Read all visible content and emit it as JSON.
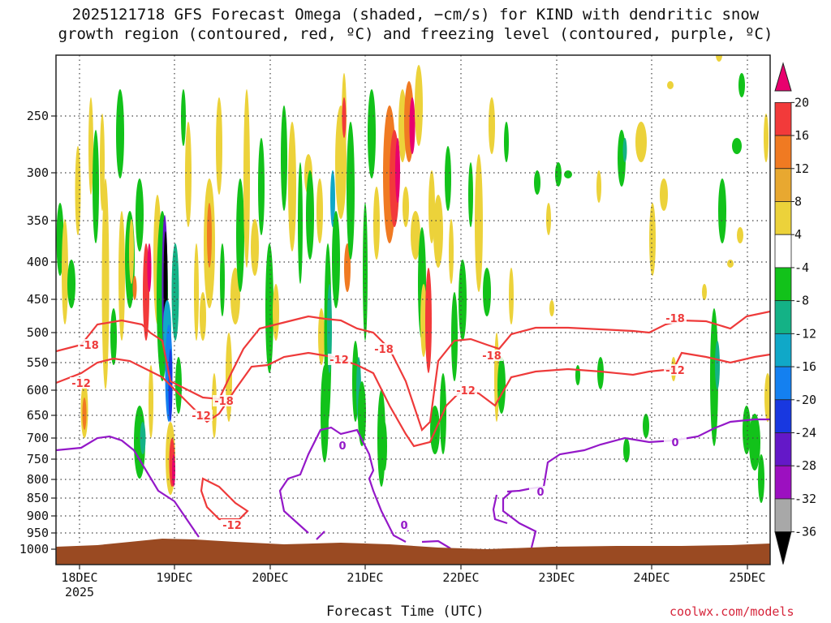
{
  "title_line1": "2025121718 GFS Forecast Omega (shaded, −cm/s) for KIND with dendritic snow",
  "title_line2": "growth region (contoured, red, ºC) and freezing level (contoured, purple, ºC)",
  "xlabel": "Forecast Time (UTC)",
  "credit": "coolwx.com/models",
  "chart_data": {
    "type": "heatmap",
    "title": "2025121718 GFS Forecast Omega (shaded, −cm/s) for KIND with dendritic snow growth region (contoured, red, ºC) and freezing level (contoured, purple, ºC)",
    "xlabel": "Forecast Time (UTC)",
    "ylabel": "",
    "x_ticks": [
      "18DEC",
      "19DEC",
      "20DEC",
      "21DEC",
      "22DEC",
      "23DEC",
      "24DEC",
      "25DEC"
    ],
    "x_tick_sub": "2025",
    "y_ticks": [
      250,
      300,
      350,
      400,
      450,
      500,
      550,
      600,
      650,
      700,
      750,
      800,
      850,
      900,
      950,
      1000
    ],
    "y_scale": "log-pressure",
    "grid": true,
    "colorbar": {
      "labels": [
        20,
        16,
        12,
        8,
        4,
        -4,
        -8,
        -12,
        -16,
        -20,
        -24,
        -28,
        -32,
        -36
      ],
      "colors": [
        "#e8006e",
        "#f23a3a",
        "#f07a22",
        "#e8a830",
        "#ecd23a",
        "#ffffff",
        "#12c21a",
        "#14b286",
        "#10a8c8",
        "#1480f0",
        "#1838e0",
        "#6418c8",
        "#9c10c0",
        "#a8a8a8",
        "#000000"
      ],
      "position": "right"
    },
    "contour_labels": [
      {
        "series": "dendritic",
        "text": "-18"
      },
      {
        "series": "dendritic",
        "text": "-12"
      },
      {
        "series": "dendritic",
        "text": "-18"
      },
      {
        "series": "dendritic",
        "text": "-12"
      },
      {
        "series": "dendritic",
        "text": "-12"
      },
      {
        "series": "dendritic",
        "text": "-18"
      },
      {
        "series": "dendritic",
        "text": "-12"
      },
      {
        "series": "dendritic",
        "text": "-18"
      },
      {
        "series": "dendritic",
        "text": "-12"
      },
      {
        "series": "dendritic",
        "text": "-18"
      },
      {
        "series": "dendritic",
        "text": "-12"
      },
      {
        "series": "freezing",
        "text": "0"
      },
      {
        "series": "freezing",
        "text": "0"
      },
      {
        "series": "freezing",
        "text": "0"
      },
      {
        "series": "freezing",
        "text": "0"
      }
    ],
    "contours": {
      "dendritic_minus18_color": "#ee3a3a",
      "dendritic_minus12_color": "#ee3a3a",
      "freezing_0_color": "#9418c8"
    },
    "terrain_color": "#9a4a22"
  }
}
